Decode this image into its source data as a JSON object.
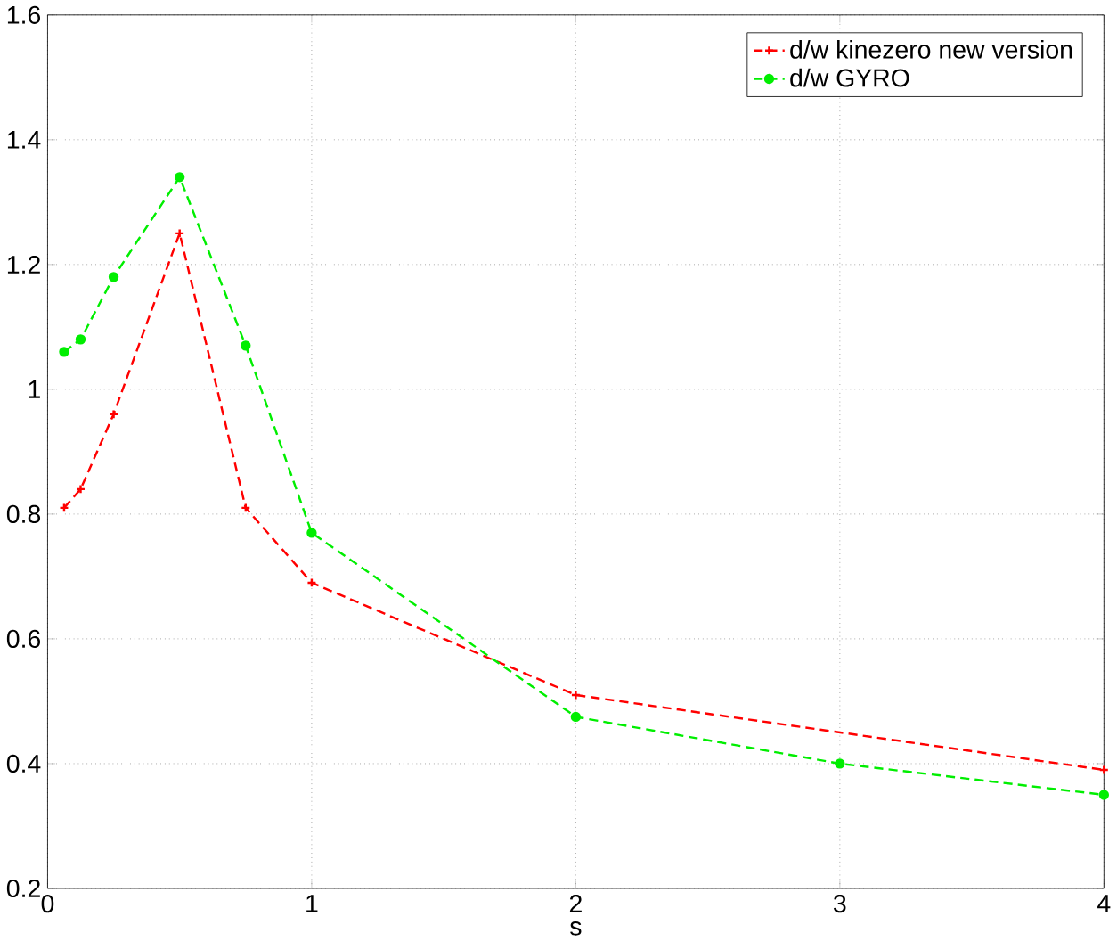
{
  "chart_data": {
    "type": "line",
    "xlabel": "s",
    "xlim": [
      0,
      4
    ],
    "xticks": [
      0,
      1,
      2,
      3,
      4
    ],
    "ylim": [
      0.2,
      1.6
    ],
    "yticks": [
      0.2,
      0.4,
      0.6,
      0.8,
      1,
      1.2,
      1.4,
      1.6
    ],
    "grid": true,
    "legend": "top right",
    "line_style": "dashed",
    "series": [
      {
        "name": "d/w kinezero new version",
        "color": "#ff0000",
        "marker": "cross",
        "x": [
          0.0625,
          0.125,
          0.25,
          0.5,
          0.75,
          1,
          2,
          4
        ],
        "values": [
          0.81,
          0.84,
          0.96,
          1.25,
          0.81,
          0.69,
          0.51,
          0.39
        ]
      },
      {
        "name": "d/w GYRO",
        "color": "#00ee00",
        "marker": "circle",
        "x": [
          0.0625,
          0.125,
          0.25,
          0.5,
          0.75,
          1,
          2,
          3,
          4
        ],
        "values": [
          1.06,
          1.08,
          1.18,
          1.34,
          1.07,
          0.77,
          0.475,
          0.4,
          0.35
        ]
      }
    ]
  }
}
